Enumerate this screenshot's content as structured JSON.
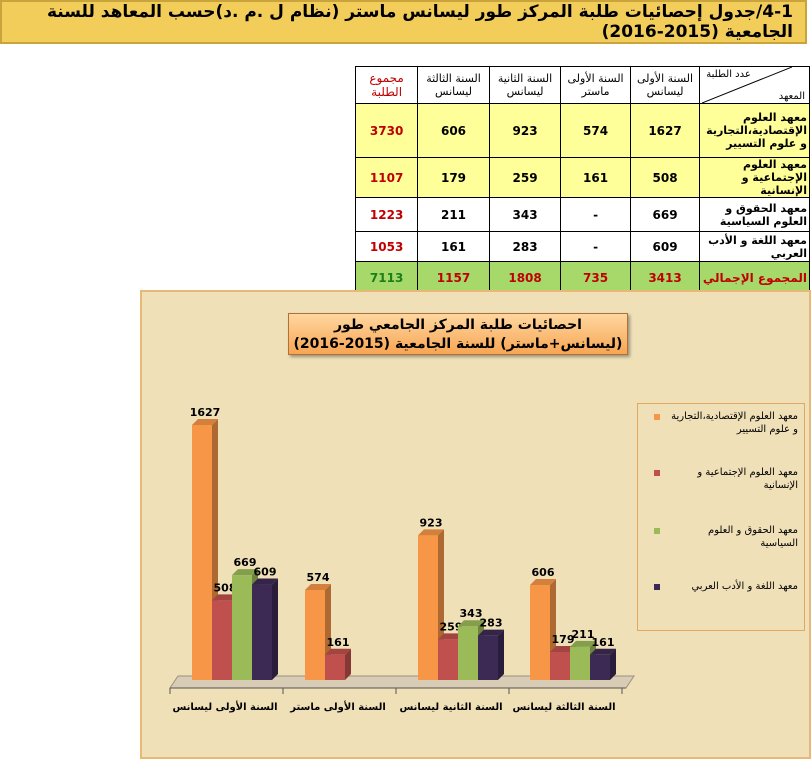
{
  "title": "4-1/جدول إحصائيات طلبة المركز طور ليسانس ماستر (نظام ل .م .د)حسب المعاهد للسنة الجامعية (2015-2016)",
  "table": {
    "corner_top": "عدد الطلبة",
    "corner_bottom": "المعهد",
    "headers": [
      "السنة الأولى ليسانس",
      "السنة الأولى ماستر",
      "السنة الثانية ليسانس",
      "السنة الثالثة ليسانس",
      "مجموع الطلبة"
    ],
    "rows": [
      {
        "name": "معهد العلوم الإقتصادية،التجارية و علوم التسيير",
        "cells": [
          "1627",
          "574",
          "923",
          "606"
        ],
        "total": "3730"
      },
      {
        "name": "معهد العلوم الإجتماعية و الإنسانية",
        "cells": [
          "508",
          "161",
          "259",
          "179"
        ],
        "total": "1107"
      },
      {
        "name": "معهد الحقوق و العلوم السياسية",
        "cells": [
          "669",
          "-",
          "343",
          "211"
        ],
        "total": "1223"
      },
      {
        "name": "معهد اللغة و الأدب العربي",
        "cells": [
          "609",
          "-",
          "283",
          "161"
        ],
        "total": "1053"
      }
    ],
    "grand": {
      "name": "المجموع الإجمالي",
      "cells": [
        "3413",
        "735",
        "1808",
        "1157"
      ],
      "total": "7113"
    }
  },
  "chart_data": {
    "type": "bar",
    "title": "احصائيات طلبة المركز الجامعي طور (ليسانس+ماستر) للسنة الجامعية (2015-2016)",
    "categories": [
      "السنة الأولى ليسانس",
      "السنة الأولى ماستر",
      "السنة الثانية ليسانس",
      "السنة الثالثة ليسانس"
    ],
    "series": [
      {
        "name": "معهد العلوم الإقتصادية،التجارية و علوم التسيير",
        "values": [
          1627,
          574,
          923,
          606
        ],
        "color": "#f79646"
      },
      {
        "name": "معهد العلوم الإجتماعية و الإنسانية",
        "values": [
          508,
          161,
          259,
          179
        ],
        "color": "#c0504d"
      },
      {
        "name": "معهد الحقوق و العلوم السياسية",
        "values": [
          669,
          null,
          343,
          211
        ],
        "color": "#9bbb59"
      },
      {
        "name": "معهد اللغة و الأدب العربي",
        "values": [
          609,
          null,
          283,
          161
        ],
        "color": "#3c2a55"
      }
    ],
    "ylim": [
      0,
      1700
    ],
    "legend": "right"
  }
}
